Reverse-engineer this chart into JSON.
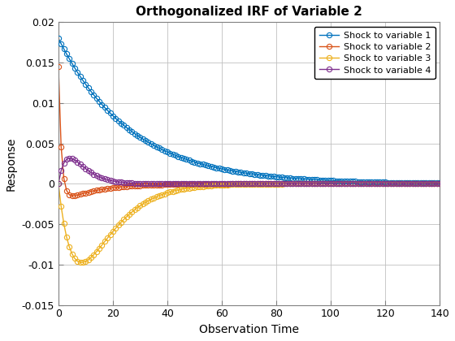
{
  "title": "Orthogonalized IRF of Variable 2",
  "xlabel": "Observation Time",
  "ylabel": "Response",
  "xlim": [
    0,
    140
  ],
  "ylim": [
    -0.015,
    0.02
  ],
  "yticks": [
    -0.015,
    -0.01,
    -0.005,
    0.0,
    0.005,
    0.01,
    0.015,
    0.02
  ],
  "xticks": [
    0,
    20,
    40,
    60,
    80,
    100,
    120,
    140
  ],
  "legend_labels": [
    "Shock to variable 1",
    "Shock to variable 2",
    "Shock to variable 3",
    "Shock to variable 4"
  ],
  "colors": [
    "#0072BD",
    "#D95319",
    "#EDB120",
    "#7E2F8E"
  ],
  "n_points": 140,
  "background_color": "#FFFFFF",
  "grid_color": "#C0C0C0",
  "irf1": {
    "a": 0.018,
    "tau": 0.038
  },
  "irf2_pos": {
    "a": 0.017,
    "tau": 0.9
  },
  "irf2_neg": {
    "a": 0.0025,
    "tau": 0.08
  },
  "irf3": {
    "a": -0.0115,
    "peak_t": 10,
    "decay": 0.018
  },
  "irf4": {
    "a": 0.0038,
    "peak_t": 5,
    "decay": 0.04
  }
}
